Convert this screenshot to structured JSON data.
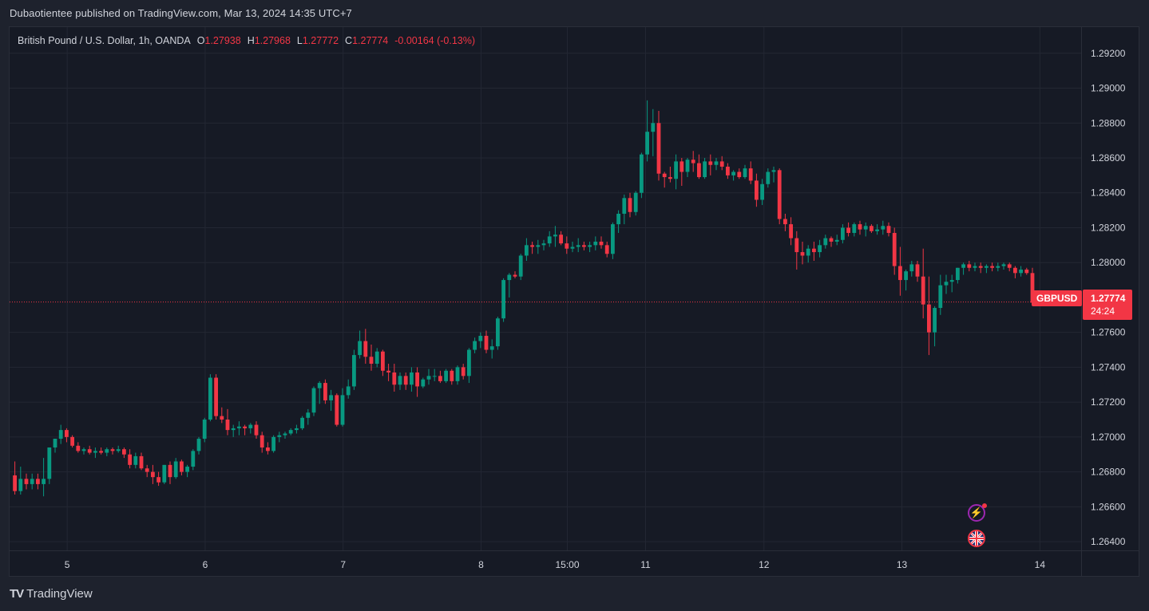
{
  "header": {
    "published_text": "Dubaotientee published on TradingView.com, Mar 13, 2024 14:35 UTC+7"
  },
  "legend": {
    "symbol_text": "British Pound / U.S. Dollar, 1h, OANDA",
    "open_label": "O",
    "open_value": "1.27938",
    "high_label": "H",
    "high_value": "1.27968",
    "low_label": "L",
    "low_value": "1.27772",
    "close_label": "C",
    "close_value": "1.27774",
    "change_text": "-0.00164 (-0.13%)"
  },
  "price_tag": {
    "symbol": "GBPUSD",
    "price": "1.27774",
    "countdown": "24:24"
  },
  "brand": {
    "logo": "TV",
    "name": "TradingView"
  },
  "colors": {
    "up": "#089981",
    "down": "#f23645",
    "background": "#161a25",
    "grid": "#232733",
    "text": "#d1d4dc"
  },
  "chart_data": {
    "type": "candlestick",
    "symbol": "GBPUSD",
    "interval": "1h",
    "ylim": [
      1.2635,
      1.2935
    ],
    "y_ticks": [
      "1.29200",
      "1.29000",
      "1.28800",
      "1.28600",
      "1.28400",
      "1.28200",
      "1.28000",
      "1.27600",
      "1.27400",
      "1.27200",
      "1.27000",
      "1.26800",
      "1.26600",
      "1.26400"
    ],
    "x_ticks": [
      {
        "label": "5",
        "t": 9.6
      },
      {
        "label": "6",
        "t": 33.6
      },
      {
        "label": "7",
        "t": 57.6
      },
      {
        "label": "8",
        "t": 81.6
      },
      {
        "label": "15:00",
        "t": 96.6
      },
      {
        "label": "11",
        "t": 110.2
      },
      {
        "label": "12",
        "t": 130.8
      },
      {
        "label": "13",
        "t": 154.8
      },
      {
        "label": "14",
        "t": 178.8
      }
    ],
    "last_price": 1.27774,
    "ohlc": [
      [
        1.2678,
        1.2686,
        1.2667,
        1.2669
      ],
      [
        1.2669,
        1.2683,
        1.2667,
        1.2676
      ],
      [
        1.2676,
        1.2679,
        1.267,
        1.2673
      ],
      [
        1.2673,
        1.2679,
        1.267,
        1.2676
      ],
      [
        1.2676,
        1.2679,
        1.267,
        1.2673
      ],
      [
        1.2673,
        1.2688,
        1.2666,
        1.2676
      ],
      [
        1.2676,
        1.2694,
        1.2673,
        1.2694
      ],
      [
        1.2694,
        1.2699,
        1.2691,
        1.2699
      ],
      [
        1.2699,
        1.2707,
        1.2696,
        1.2704
      ],
      [
        1.2704,
        1.2705,
        1.2697,
        1.27
      ],
      [
        1.27,
        1.2701,
        1.2694,
        1.2695
      ],
      [
        1.2695,
        1.2697,
        1.2691,
        1.2692
      ],
      [
        1.2692,
        1.2694,
        1.269,
        1.2693
      ],
      [
        1.2693,
        1.2695,
        1.269,
        1.2691
      ],
      [
        1.2691,
        1.2694,
        1.2688,
        1.2692
      ],
      [
        1.2692,
        1.2694,
        1.269,
        1.2691
      ],
      [
        1.2691,
        1.2694,
        1.2689,
        1.2693
      ],
      [
        1.2693,
        1.2694,
        1.269,
        1.2692
      ],
      [
        1.2692,
        1.2695,
        1.2691,
        1.2693
      ],
      [
        1.2693,
        1.2694,
        1.2688,
        1.269
      ],
      [
        1.269,
        1.2693,
        1.2682,
        1.2684
      ],
      [
        1.2684,
        1.2691,
        1.2682,
        1.2689
      ],
      [
        1.2689,
        1.2691,
        1.2681,
        1.2682
      ],
      [
        1.2682,
        1.2684,
        1.2677,
        1.268
      ],
      [
        1.268,
        1.2684,
        1.2673,
        1.2677
      ],
      [
        1.2677,
        1.268,
        1.2672,
        1.2674
      ],
      [
        1.2674,
        1.2684,
        1.2673,
        1.2684
      ],
      [
        1.2684,
        1.2686,
        1.2673,
        1.2677
      ],
      [
        1.2677,
        1.2688,
        1.2676,
        1.2686
      ],
      [
        1.2686,
        1.2687,
        1.2678,
        1.268
      ],
      [
        1.268,
        1.2684,
        1.2677,
        1.2683
      ],
      [
        1.2683,
        1.2693,
        1.2681,
        1.2692
      ],
      [
        1.2692,
        1.27,
        1.269,
        1.2699
      ],
      [
        1.2699,
        1.2711,
        1.2697,
        1.271
      ],
      [
        1.271,
        1.2736,
        1.2709,
        1.2734
      ],
      [
        1.2734,
        1.2736,
        1.271,
        1.2712
      ],
      [
        1.2712,
        1.2717,
        1.2708,
        1.271
      ],
      [
        1.271,
        1.2716,
        1.2701,
        1.2704
      ],
      [
        1.2704,
        1.2707,
        1.27,
        1.2705
      ],
      [
        1.2705,
        1.2709,
        1.2701,
        1.2706
      ],
      [
        1.2706,
        1.2707,
        1.2701,
        1.2705
      ],
      [
        1.2705,
        1.2708,
        1.2702,
        1.2707
      ],
      [
        1.2707,
        1.2709,
        1.2699,
        1.2701
      ],
      [
        1.2701,
        1.2703,
        1.2691,
        1.2694
      ],
      [
        1.2694,
        1.2697,
        1.269,
        1.2692
      ],
      [
        1.2692,
        1.2701,
        1.2691,
        1.27
      ],
      [
        1.27,
        1.2703,
        1.2697,
        1.2701
      ],
      [
        1.2701,
        1.2703,
        1.2699,
        1.2702
      ],
      [
        1.2702,
        1.2705,
        1.2701,
        1.2704
      ],
      [
        1.2704,
        1.2707,
        1.2702,
        1.2705
      ],
      [
        1.2705,
        1.2712,
        1.2704,
        1.2711
      ],
      [
        1.2711,
        1.2716,
        1.2707,
        1.2714
      ],
      [
        1.2714,
        1.2729,
        1.2712,
        1.2728
      ],
      [
        1.2728,
        1.2732,
        1.2719,
        1.2731
      ],
      [
        1.2731,
        1.2733,
        1.2719,
        1.2721
      ],
      [
        1.2721,
        1.2727,
        1.2715,
        1.2724
      ],
      [
        1.2724,
        1.2725,
        1.2706,
        1.2707
      ],
      [
        1.2707,
        1.2728,
        1.2706,
        1.2724
      ],
      [
        1.2724,
        1.2733,
        1.2722,
        1.2729
      ],
      [
        1.2729,
        1.275,
        1.2727,
        1.2747
      ],
      [
        1.2747,
        1.2761,
        1.2745,
        1.2755
      ],
      [
        1.2755,
        1.2762,
        1.2742,
        1.2746
      ],
      [
        1.2746,
        1.2753,
        1.2738,
        1.2742
      ],
      [
        1.2742,
        1.2751,
        1.274,
        1.2749
      ],
      [
        1.2749,
        1.275,
        1.2735,
        1.2738
      ],
      [
        1.2738,
        1.2742,
        1.2732,
        1.2737
      ],
      [
        1.2737,
        1.2742,
        1.2726,
        1.273
      ],
      [
        1.273,
        1.2737,
        1.2727,
        1.2735
      ],
      [
        1.2735,
        1.2737,
        1.2727,
        1.273
      ],
      [
        1.273,
        1.274,
        1.2726,
        1.2737
      ],
      [
        1.2737,
        1.274,
        1.2723,
        1.2729
      ],
      [
        1.2729,
        1.2734,
        1.2728,
        1.2733
      ],
      [
        1.2733,
        1.2739,
        1.273,
        1.2735
      ],
      [
        1.2735,
        1.2739,
        1.2732,
        1.2735
      ],
      [
        1.2735,
        1.2738,
        1.2731,
        1.2732
      ],
      [
        1.2732,
        1.2739,
        1.2731,
        1.2738
      ],
      [
        1.2738,
        1.2739,
        1.273,
        1.2732
      ],
      [
        1.2732,
        1.2741,
        1.273,
        1.274
      ],
      [
        1.274,
        1.2742,
        1.2733,
        1.2735
      ],
      [
        1.2735,
        1.2751,
        1.2731,
        1.275
      ],
      [
        1.275,
        1.2757,
        1.2748,
        1.2755
      ],
      [
        1.2755,
        1.276,
        1.2751,
        1.2758
      ],
      [
        1.2758,
        1.2761,
        1.2748,
        1.275
      ],
      [
        1.275,
        1.2756,
        1.2745,
        1.2752
      ],
      [
        1.2752,
        1.2769,
        1.275,
        1.2768
      ],
      [
        1.2768,
        1.2791,
        1.2766,
        1.279
      ],
      [
        1.279,
        1.2794,
        1.278,
        1.2793
      ],
      [
        1.2793,
        1.2795,
        1.2791,
        1.2792
      ],
      [
        1.2792,
        1.2805,
        1.279,
        1.2804
      ],
      [
        1.2804,
        1.2814,
        1.2801,
        1.281
      ],
      [
        1.281,
        1.2812,
        1.2805,
        1.2809
      ],
      [
        1.2809,
        1.2813,
        1.2805,
        1.281
      ],
      [
        1.281,
        1.2813,
        1.2807,
        1.2811
      ],
      [
        1.2811,
        1.2818,
        1.2809,
        1.2815
      ],
      [
        1.2815,
        1.2821,
        1.2809,
        1.2816
      ],
      [
        1.2816,
        1.2818,
        1.281,
        1.2811
      ],
      [
        1.2811,
        1.2815,
        1.2805,
        1.2808
      ],
      [
        1.2808,
        1.2812,
        1.2806,
        1.2809
      ],
      [
        1.2809,
        1.2814,
        1.2806,
        1.281
      ],
      [
        1.281,
        1.2812,
        1.2807,
        1.2809
      ],
      [
        1.2809,
        1.2812,
        1.2806,
        1.281
      ],
      [
        1.281,
        1.2815,
        1.2807,
        1.2812
      ],
      [
        1.2812,
        1.2815,
        1.2808,
        1.281
      ],
      [
        1.281,
        1.2812,
        1.2803,
        1.2805
      ],
      [
        1.2805,
        1.2823,
        1.2802,
        1.2822
      ],
      [
        1.2822,
        1.283,
        1.2817,
        1.2828
      ],
      [
        1.2828,
        1.2839,
        1.2822,
        1.2837
      ],
      [
        1.2837,
        1.284,
        1.2826,
        1.2829
      ],
      [
        1.2829,
        1.2841,
        1.2827,
        1.284
      ],
      [
        1.284,
        1.2863,
        1.2837,
        1.2862
      ],
      [
        1.2862,
        1.2893,
        1.2858,
        1.2875
      ],
      [
        1.2875,
        1.2888,
        1.2861,
        1.288
      ],
      [
        1.288,
        1.2887,
        1.2847,
        1.2851
      ],
      [
        1.2851,
        1.2852,
        1.2843,
        1.2849
      ],
      [
        1.2849,
        1.2855,
        1.2846,
        1.2848
      ],
      [
        1.2848,
        1.2862,
        1.2842,
        1.2858
      ],
      [
        1.2858,
        1.286,
        1.2844,
        1.2852
      ],
      [
        1.2852,
        1.286,
        1.2849,
        1.2859
      ],
      [
        1.2859,
        1.2864,
        1.2852,
        1.2857
      ],
      [
        1.2857,
        1.2862,
        1.2848,
        1.2849
      ],
      [
        1.2849,
        1.286,
        1.2848,
        1.2858
      ],
      [
        1.2858,
        1.2862,
        1.285,
        1.2856
      ],
      [
        1.2856,
        1.286,
        1.2853,
        1.2858
      ],
      [
        1.2858,
        1.2861,
        1.2853,
        1.2855
      ],
      [
        1.2855,
        1.2857,
        1.2848,
        1.285
      ],
      [
        1.285,
        1.2853,
        1.2847,
        1.2852
      ],
      [
        1.2852,
        1.2854,
        1.2848,
        1.2849
      ],
      [
        1.2849,
        1.2856,
        1.2848,
        1.2854
      ],
      [
        1.2854,
        1.2858,
        1.2845,
        1.2847
      ],
      [
        1.2847,
        1.2851,
        1.2832,
        1.2836
      ],
      [
        1.2836,
        1.2848,
        1.2833,
        1.2845
      ],
      [
        1.2845,
        1.2854,
        1.2843,
        1.2852
      ],
      [
        1.2852,
        1.2855,
        1.2846,
        1.2853
      ],
      [
        1.2853,
        1.2854,
        1.2822,
        1.2825
      ],
      [
        1.2825,
        1.2828,
        1.2818,
        1.2822
      ],
      [
        1.2822,
        1.2826,
        1.281,
        1.2814
      ],
      [
        1.2814,
        1.2818,
        1.2796,
        1.2806
      ],
      [
        1.2806,
        1.2812,
        1.2799,
        1.2804
      ],
      [
        1.2804,
        1.281,
        1.28,
        1.2808
      ],
      [
        1.2808,
        1.2812,
        1.2801,
        1.2806
      ],
      [
        1.2806,
        1.2813,
        1.2803,
        1.281
      ],
      [
        1.281,
        1.2816,
        1.2808,
        1.2814
      ],
      [
        1.2814,
        1.2815,
        1.2809,
        1.2812
      ],
      [
        1.2812,
        1.2816,
        1.281,
        1.2813
      ],
      [
        1.2813,
        1.2822,
        1.2811,
        1.282
      ],
      [
        1.282,
        1.2823,
        1.2815,
        1.2817
      ],
      [
        1.2817,
        1.2823,
        1.2815,
        1.2822
      ],
      [
        1.2822,
        1.2824,
        1.2816,
        1.2819
      ],
      [
        1.2819,
        1.2823,
        1.2815,
        1.2821
      ],
      [
        1.2821,
        1.2822,
        1.2817,
        1.2818
      ],
      [
        1.2818,
        1.2822,
        1.2816,
        1.2819
      ],
      [
        1.2819,
        1.2824,
        1.2816,
        1.2821
      ],
      [
        1.2821,
        1.2823,
        1.2815,
        1.2817
      ],
      [
        1.2817,
        1.282,
        1.2793,
        1.2798
      ],
      [
        1.2798,
        1.2809,
        1.2781,
        1.279
      ],
      [
        1.279,
        1.2796,
        1.2784,
        1.2795
      ],
      [
        1.2795,
        1.2801,
        1.2792,
        1.2799
      ],
      [
        1.2799,
        1.2801,
        1.2789,
        1.2792
      ],
      [
        1.2792,
        1.2808,
        1.2768,
        1.2776
      ],
      [
        1.2776,
        1.2792,
        1.2747,
        1.276
      ],
      [
        1.276,
        1.2775,
        1.2752,
        1.2774
      ],
      [
        1.2774,
        1.2793,
        1.277,
        1.2787
      ],
      [
        1.2787,
        1.2793,
        1.2782,
        1.2789
      ],
      [
        1.2789,
        1.2793,
        1.2783,
        1.279
      ],
      [
        1.279,
        1.2797,
        1.2788,
        1.2797
      ],
      [
        1.2797,
        1.28,
        1.2793,
        1.2799
      ],
      [
        1.2799,
        1.2801,
        1.2795,
        1.2797
      ],
      [
        1.2797,
        1.28,
        1.2795,
        1.2798
      ],
      [
        1.2798,
        1.28,
        1.2794,
        1.2797
      ],
      [
        1.2797,
        1.2799,
        1.2794,
        1.2798
      ],
      [
        1.2798,
        1.28,
        1.2795,
        1.2797
      ],
      [
        1.2797,
        1.28,
        1.2795,
        1.2798
      ],
      [
        1.2798,
        1.28,
        1.2796,
        1.2799
      ],
      [
        1.2799,
        1.28,
        1.2795,
        1.2797
      ],
      [
        1.2797,
        1.2798,
        1.2791,
        1.2794
      ],
      [
        1.2794,
        1.2798,
        1.2792,
        1.2796
      ],
      [
        1.2796,
        1.2797,
        1.2793,
        1.2794
      ],
      [
        1.2794,
        1.2797,
        1.2777,
        1.2777
      ]
    ]
  }
}
